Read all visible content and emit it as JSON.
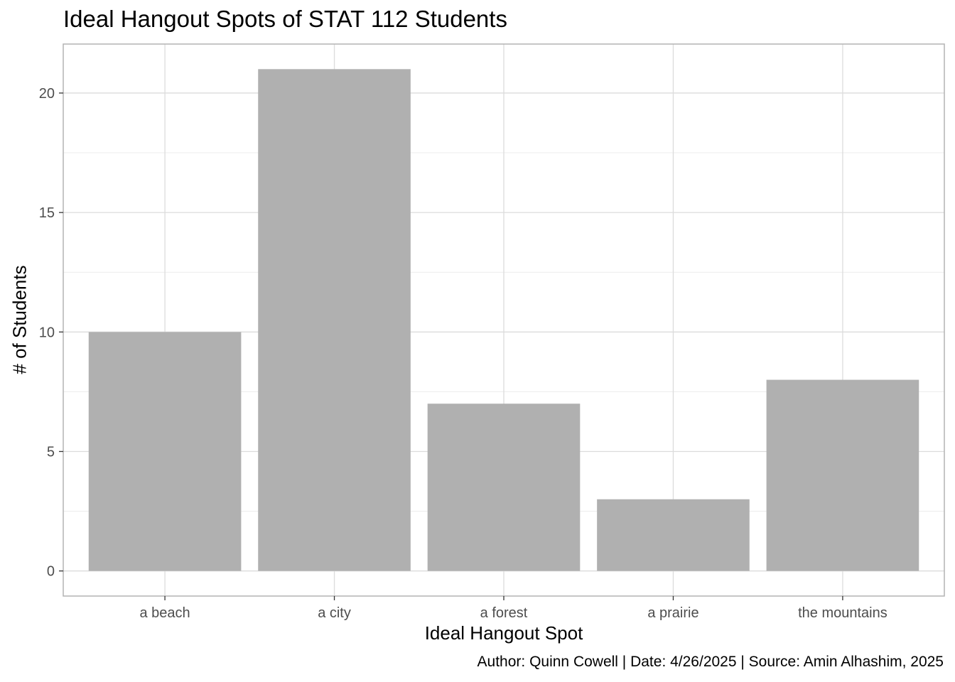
{
  "chart_data": {
    "type": "bar",
    "title": "Ideal Hangout Spots of STAT 112 Students",
    "xlabel": "Ideal Hangout Spot",
    "ylabel": "# of Students",
    "caption": "Author: Quinn Cowell | Date: 4/26/2025 | Source: Amin Alhashim, 2025",
    "categories": [
      "a beach",
      "a city",
      "a forest",
      "a prairie",
      "the mountains"
    ],
    "values": [
      10,
      21,
      7,
      3,
      8
    ],
    "ylim": [
      -1.05,
      22.05
    ],
    "yticks": [
      0,
      5,
      10,
      15,
      20
    ],
    "grid": true,
    "bar_color": "#b0b0b0",
    "grid_color": "#dcdcdc",
    "panel_border_color": "#b3b3b3"
  }
}
